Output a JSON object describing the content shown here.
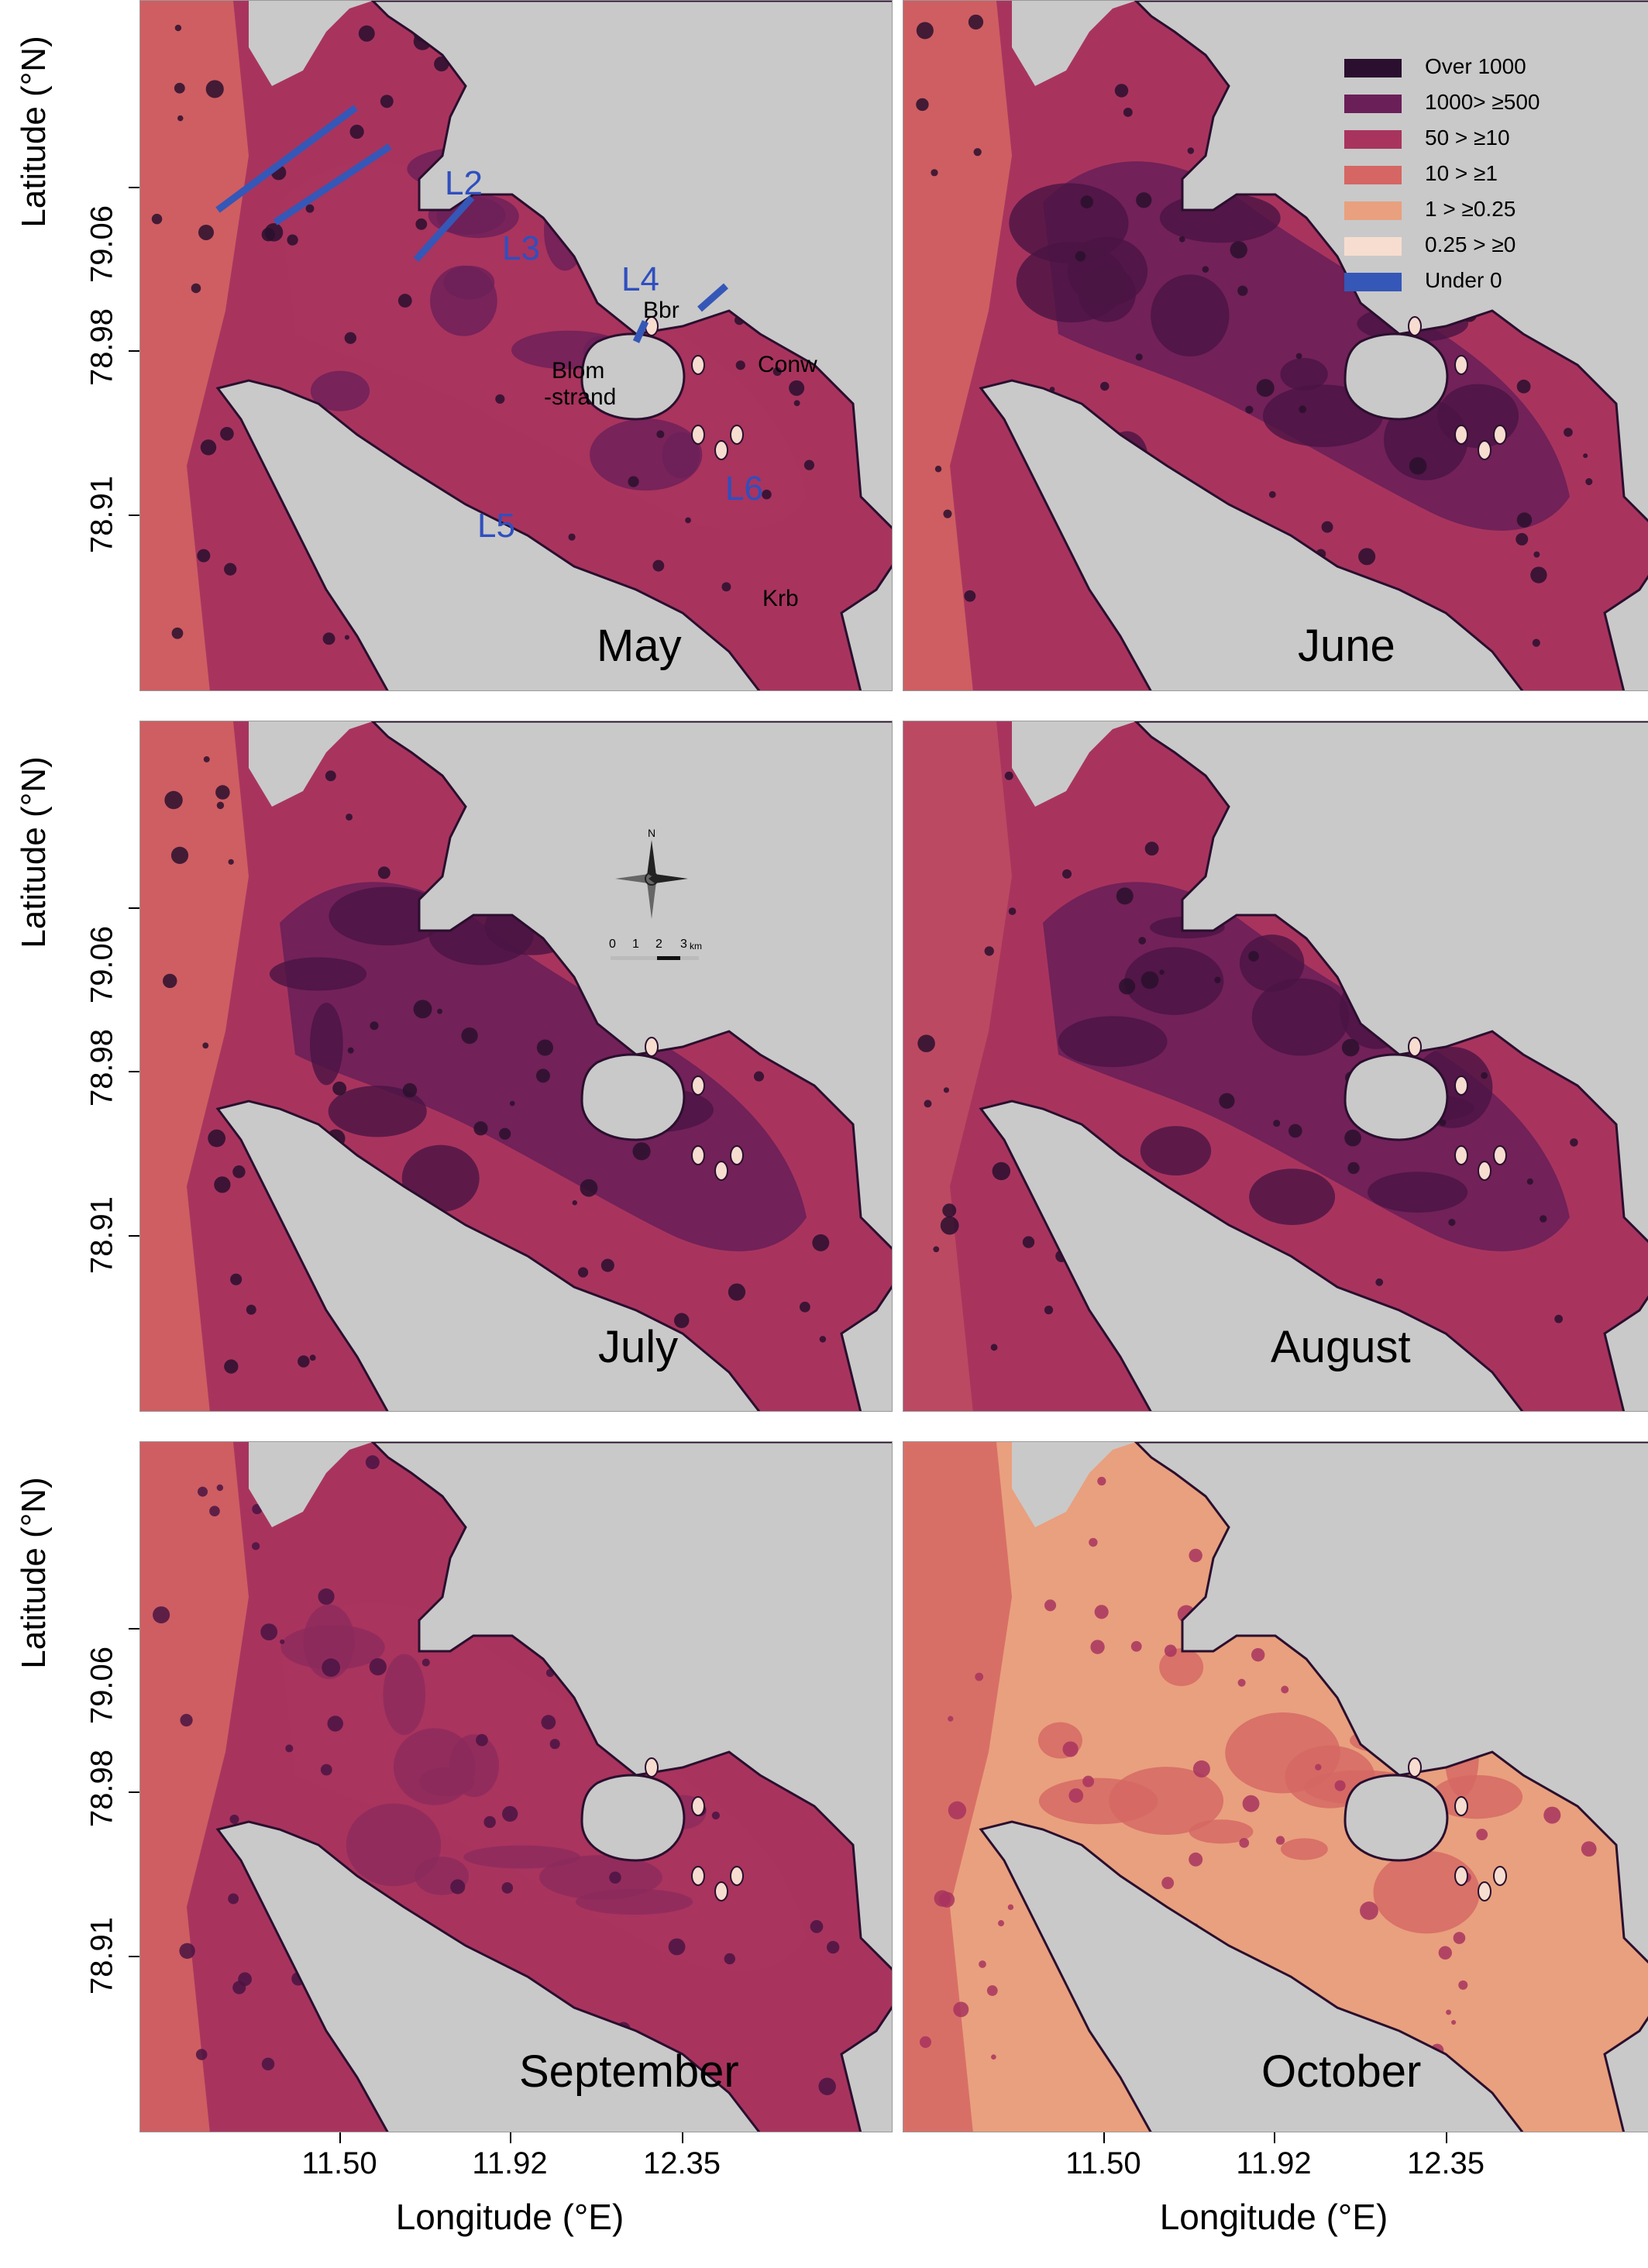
{
  "axes": {
    "ylabel": "Latitude (°N)",
    "xlabel": "Longitude (°E)",
    "yticks": [
      "79.06",
      "78.98",
      "78.91"
    ],
    "xticks": [
      "11.50",
      "11.92",
      "12.35"
    ]
  },
  "legend": {
    "items": [
      {
        "label": "Over 1000",
        "color": "#2a0f2e"
      },
      {
        "label": "1000> ≥500",
        "color": "#6b1f59"
      },
      {
        "label": "50 > ≥10",
        "color": "#a8345e"
      },
      {
        "label": "10 > ≥1",
        "color": "#d56663"
      },
      {
        "label": "1 > ≥0.25",
        "color": "#e9a07e"
      },
      {
        "label": "0.25 > ≥0",
        "color": "#f7ddd0"
      },
      {
        "label": "Under 0",
        "color": "#3557b7"
      }
    ]
  },
  "transects": [
    "L2",
    "L3",
    "L4",
    "L5",
    "L6"
  ],
  "places": {
    "bbr": "Bbr",
    "conw": "Conw",
    "blom": "Blom",
    "strand": "-strand",
    "krb": "Krb"
  },
  "compass": {
    "north": "N"
  },
  "scalebar": {
    "labels": [
      "0",
      "1",
      "2",
      "3"
    ],
    "unit": "km"
  },
  "panels": [
    {
      "month": "May",
      "sea": "#a8345e",
      "inner": "#a8345e",
      "outer": "#d56663",
      "dark": "#6b1f59",
      "spots": "#2a0f2e"
    },
    {
      "month": "June",
      "sea": "#a8345e",
      "inner": "#6b1f59",
      "outer": "#d56663",
      "dark": "#4a1443",
      "spots": "#2a0f2e"
    },
    {
      "month": "July",
      "sea": "#a8345e",
      "inner": "#6b1f59",
      "outer": "#d56663",
      "dark": "#4a1443",
      "spots": "#2a0f2e"
    },
    {
      "month": "August",
      "sea": "#a8345e",
      "inner": "#6b1f59",
      "outer": "#c04d63",
      "dark": "#4a1443",
      "spots": "#2a0f2e"
    },
    {
      "month": "September",
      "sea": "#a8345e",
      "inner": "#a8345e",
      "outer": "#d56663",
      "dark": "#8c2a5c",
      "spots": "#4a1443"
    },
    {
      "month": "October",
      "sea": "#e9a07e",
      "inner": "#e9a07e",
      "outer": "#d56663",
      "dark": "#d56663",
      "spots": "#a8345e"
    }
  ]
}
